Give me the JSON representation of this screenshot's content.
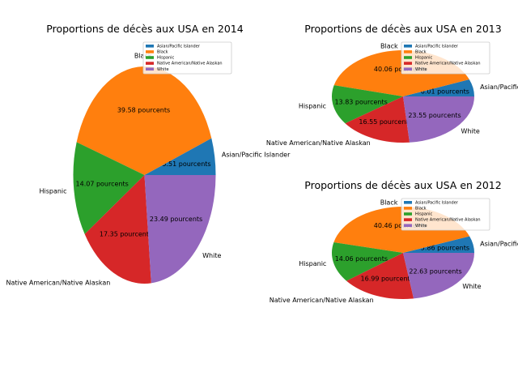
{
  "chart_data": [
    {
      "type": "pie",
      "title": "Proportions de décès aux USA en 2014",
      "legend": {
        "placement": "top-right"
      },
      "categories": [
        "Asian/Pacific Islander",
        "Black",
        "Hispanic",
        "Native American/Native Alaskan",
        "White"
      ],
      "values": [
        5.51,
        39.58,
        14.07,
        17.35,
        23.49
      ],
      "value_labels": [
        "5.51 pourcents",
        "39.58 pourcents",
        "14.07 pourcents",
        "17.35 pourcents",
        "23.49 pourcents"
      ]
    },
    {
      "type": "pie",
      "title": "Proportions de décès aux USA en 2013",
      "legend": {
        "placement": "top-right"
      },
      "categories": [
        "Asian/Pacific Islander",
        "Black",
        "Hispanic",
        "Native American/Native Alaskan",
        "White"
      ],
      "values": [
        6.01,
        40.06,
        13.83,
        16.55,
        23.55
      ],
      "value_labels": [
        "6.01 pourcents",
        "40.06 pourcents",
        "13.83 pourcents",
        "16.55 pourcents",
        "23.55 pourcents"
      ]
    },
    {
      "type": "pie",
      "title": "Proportions de décès aux USA en 2012",
      "legend": {
        "placement": "top-right"
      },
      "categories": [
        "Asian/Pacific Islander",
        "Black",
        "Hispanic",
        "Native American/Native Alaskan",
        "White"
      ],
      "values": [
        5.86,
        40.46,
        14.06,
        16.99,
        22.63
      ],
      "value_labels": [
        "5.86 pourcents",
        "40.46 pourcents",
        "14.06 pourcents",
        "16.99 pourcents",
        "22.63 pourcents"
      ]
    }
  ],
  "colors": [
    "#1f77b4",
    "#ff7f0e",
    "#2ca02c",
    "#d62728",
    "#9467bd"
  ]
}
